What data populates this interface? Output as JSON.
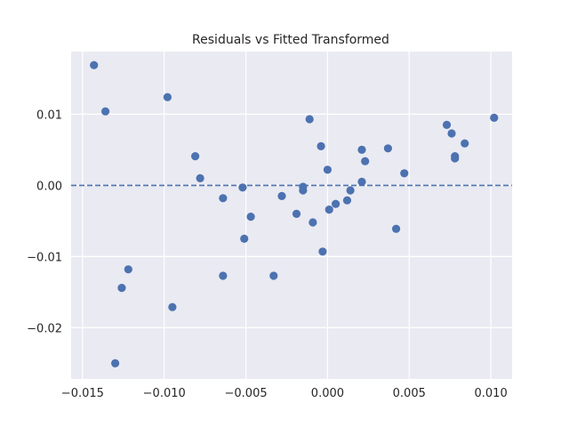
{
  "chart_data": {
    "type": "scatter",
    "title": "Residuals vs Fitted Transformed",
    "xlabel": "",
    "ylabel": "",
    "xlim": [
      -0.0157,
      0.0113
    ],
    "ylim": [
      -0.0272,
      0.0188
    ],
    "xticks": [
      -0.015,
      -0.01,
      -0.005,
      0.0,
      0.005,
      0.01
    ],
    "xtick_labels": [
      "−0.015",
      "−0.010",
      "−0.005",
      "0.000",
      "0.005",
      "0.010"
    ],
    "yticks": [
      -0.02,
      -0.01,
      0.0,
      0.01
    ],
    "ytick_labels": [
      "−0.02",
      "−0.01",
      "0.00",
      "0.01"
    ],
    "grid": true,
    "reference_line": {
      "y": 0,
      "style": "dashed"
    },
    "colors": {
      "background": "#eaeaf2",
      "grid": "#ffffff",
      "points": "#4c72b0",
      "reference_line": "#4c72b0"
    },
    "points": [
      {
        "x": -0.0143,
        "y": 0.0169
      },
      {
        "x": -0.0136,
        "y": 0.0104
      },
      {
        "x": -0.0098,
        "y": 0.0124
      },
      {
        "x": -0.0081,
        "y": 0.0041
      },
      {
        "x": -0.0078,
        "y": 0.001
      },
      {
        "x": -0.0064,
        "y": -0.0018
      },
      {
        "x": -0.0052,
        "y": -0.0003
      },
      {
        "x": -0.0047,
        "y": -0.0044
      },
      {
        "x": -0.0051,
        "y": -0.0075
      },
      {
        "x": -0.0064,
        "y": -0.0127
      },
      {
        "x": -0.0095,
        "y": -0.0171
      },
      {
        "x": -0.0122,
        "y": -0.0118
      },
      {
        "x": -0.0126,
        "y": -0.0144
      },
      {
        "x": -0.013,
        "y": -0.025
      },
      {
        "x": -0.0033,
        "y": -0.0127
      },
      {
        "x": -0.0028,
        "y": -0.0015
      },
      {
        "x": -0.0019,
        "y": -0.004
      },
      {
        "x": -0.0015,
        "y": -0.0002
      },
      {
        "x": -0.0015,
        "y": -0.0007
      },
      {
        "x": -0.0011,
        "y": 0.0093
      },
      {
        "x": -0.0009,
        "y": -0.0052
      },
      {
        "x": -0.0004,
        "y": 0.0055
      },
      {
        "x": -0.0003,
        "y": -0.0093
      },
      {
        "x": 0.0,
        "y": 0.0022
      },
      {
        "x": 0.0001,
        "y": -0.0034
      },
      {
        "x": 0.0005,
        "y": -0.0026
      },
      {
        "x": 0.0012,
        "y": -0.0021
      },
      {
        "x": 0.0014,
        "y": -0.0007
      },
      {
        "x": 0.0021,
        "y": 0.005
      },
      {
        "x": 0.0021,
        "y": 0.0005
      },
      {
        "x": 0.0023,
        "y": 0.0034
      },
      {
        "x": 0.0037,
        "y": 0.0052
      },
      {
        "x": 0.0042,
        "y": -0.0061
      },
      {
        "x": 0.0047,
        "y": 0.0017
      },
      {
        "x": 0.0073,
        "y": 0.0085
      },
      {
        "x": 0.0076,
        "y": 0.0073
      },
      {
        "x": 0.0078,
        "y": 0.0041
      },
      {
        "x": 0.0078,
        "y": 0.0038
      },
      {
        "x": 0.0084,
        "y": 0.0059
      },
      {
        "x": 0.0102,
        "y": 0.0095
      }
    ]
  }
}
